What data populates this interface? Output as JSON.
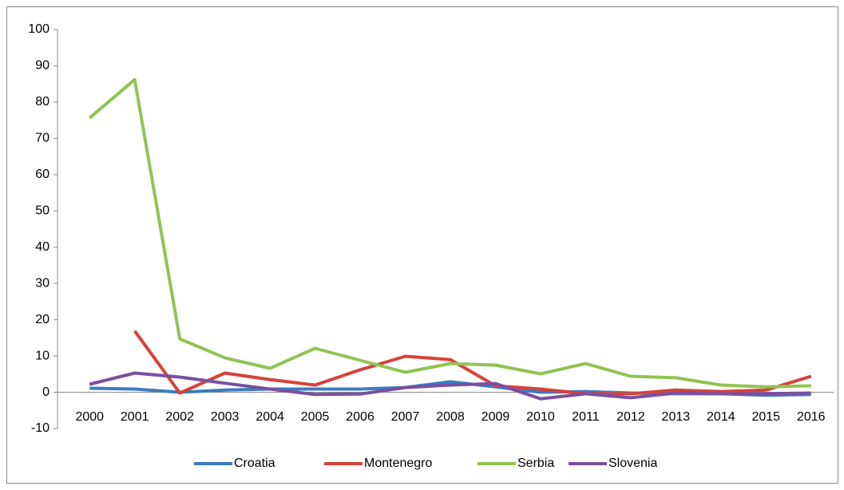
{
  "chart_data": {
    "type": "line",
    "categories": [
      "2000",
      "2001",
      "2002",
      "2003",
      "2004",
      "2005",
      "2006",
      "2007",
      "2008",
      "2009",
      "2010",
      "2011",
      "2012",
      "2013",
      "2014",
      "2015",
      "2016"
    ],
    "series": [
      {
        "name": "Croatia",
        "color": "#3b7dbf",
        "values": [
          1.1,
          0.9,
          0,
          0.6,
          0.9,
          0.9,
          0.9,
          1.3,
          2.9,
          1.5,
          0,
          0.2,
          -0.2,
          -0.4,
          -0.4,
          -0.8,
          -0.6
        ]
      },
      {
        "name": "Montenegro",
        "color": "#d8413a",
        "values": [
          null,
          16.9,
          -0.2,
          5.3,
          3.5,
          2.0,
          6.2,
          9.9,
          9.0,
          1.8,
          0.9,
          -0.4,
          -0.4,
          0.6,
          0.2,
          0.6,
          4.4
        ]
      },
      {
        "name": "Serbia",
        "color": "#92c353",
        "values": [
          75.6,
          86.2,
          14.7,
          9.5,
          6.6,
          12.1,
          8.8,
          5.5,
          7.9,
          7.5,
          5.1,
          7.9,
          4.4,
          4.0,
          2.0,
          1.5,
          1.8
        ]
      },
      {
        "name": "Slovenia",
        "color": "#7b4fa0",
        "values": [
          2.2,
          5.3,
          4.2,
          2.5,
          0.9,
          -0.6,
          -0.5,
          1.3,
          2.0,
          2.4,
          -1.8,
          -0.4,
          -1.5,
          -0.2,
          -0.4,
          -0.4,
          -0.2
        ]
      }
    ],
    "ylim": [
      -10,
      100
    ],
    "yticks": [
      -10,
      0,
      10,
      20,
      30,
      40,
      50,
      60,
      70,
      80,
      90,
      100
    ],
    "legend": "bottom"
  }
}
